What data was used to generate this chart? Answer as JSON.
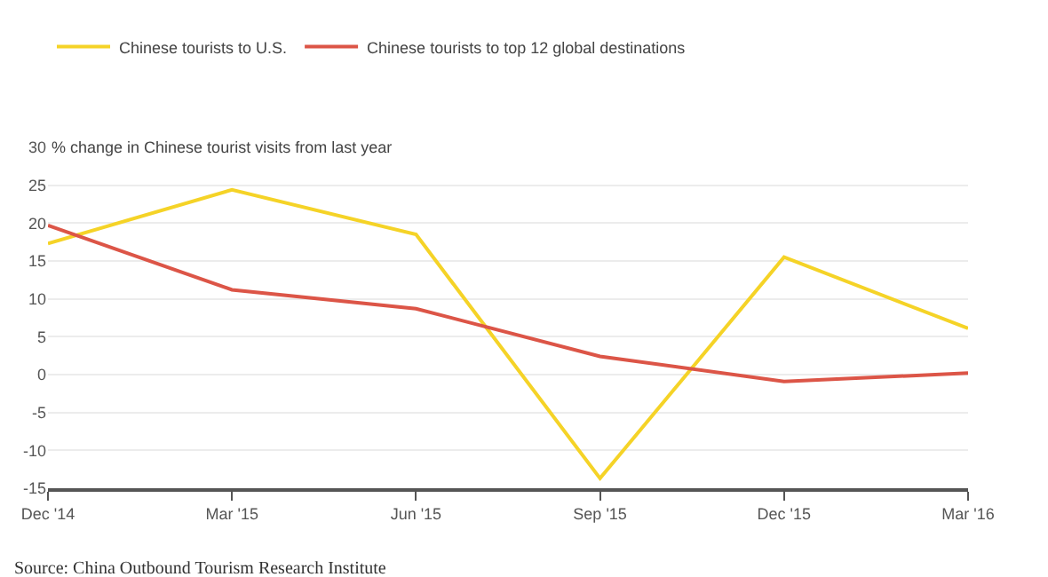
{
  "chart_data": {
    "type": "line",
    "ylabel": "% change in Chinese tourist visits from last year",
    "categories": [
      "Dec '14",
      "Mar '15",
      "Jun '15",
      "Sep '15",
      "Dec '15",
      "Mar '16"
    ],
    "series": [
      {
        "name": "Chinese tourists to U.S.",
        "color": "#f5d327",
        "values": [
          17.3,
          24.4,
          18.5,
          -13.7,
          15.5,
          6.1
        ]
      },
      {
        "name": "Chinese tourists to top 12 global destinations",
        "color": "#dc5547",
        "values": [
          19.7,
          11.2,
          8.7,
          2.4,
          -0.9,
          0.2
        ]
      }
    ],
    "ylim": [
      -15,
      30
    ],
    "yticks": [
      -15,
      -10,
      -5,
      0,
      5,
      10,
      15,
      20,
      25,
      30
    ],
    "grid": "y",
    "legend": "top left",
    "marker": "none",
    "line_style": "solid",
    "annotations": [
      "Source: China Outbound Tourism Research Institute"
    ]
  }
}
